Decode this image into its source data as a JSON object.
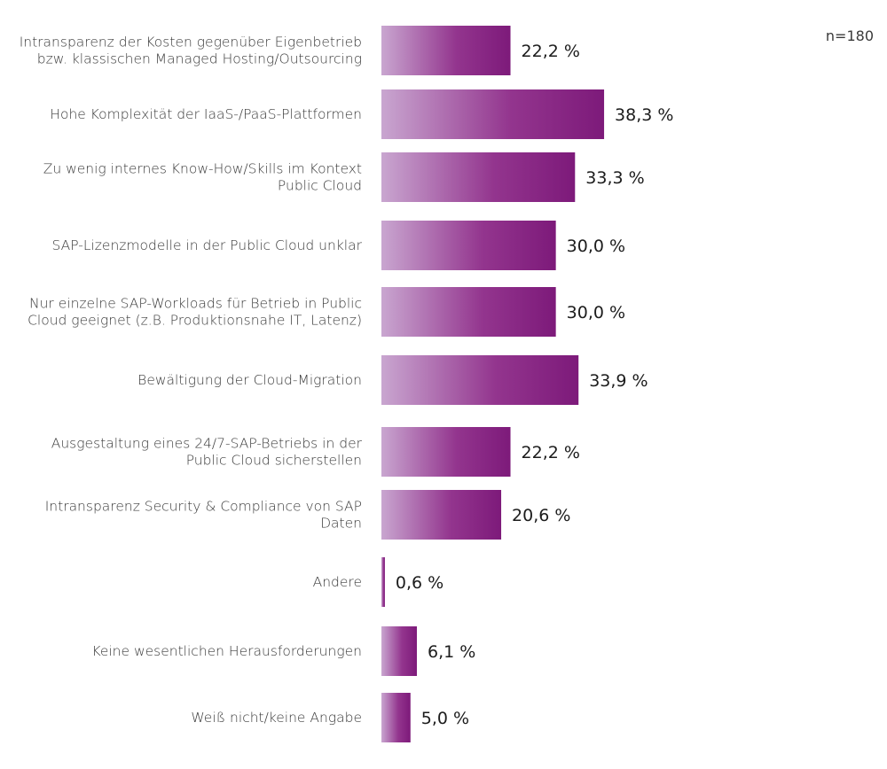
{
  "chart_data": {
    "type": "bar",
    "orientation": "horizontal",
    "sample_size": "n=180",
    "categories": [
      [
        "Intransparenz der Kosten gegenüber Eigenbetrieb",
        "bzw. klassischen Managed Hosting/Outsourcing"
      ],
      [
        "Hohe Komplexität der IaaS-/PaaS-Plattformen"
      ],
      [
        "Zu wenig internes Know-How/Skills im Kontext",
        "Public Cloud"
      ],
      [
        "SAP-Lizenzmodelle in der Public Cloud unklar"
      ],
      [
        "Nur einzelne SAP-Workloads  für Betrieb in Public",
        "Cloud geeignet (z.B. Produktionsnahe IT, Latenz)"
      ],
      [
        "Bewältigung der  Cloud-Migration"
      ],
      [
        "Ausgestaltung eines 24/7-SAP-Betriebs in der",
        "Public Cloud sicherstellen"
      ],
      [
        "Intransparenz Security & Compliance von SAP",
        "Daten"
      ],
      [
        "Andere"
      ],
      [
        "Keine wesentlichen Herausforderungen"
      ],
      [
        "Weiß nicht/keine Angabe"
      ]
    ],
    "values": [
      22.2,
      38.3,
      33.3,
      30.0,
      30.0,
      33.9,
      22.2,
      20.6,
      0.6,
      6.1,
      5.0
    ],
    "value_labels": [
      "22,2 %",
      "38,3 %",
      "33,3 %",
      "30,0 %",
      "30,0 %",
      "33,9 %",
      "22,2 %",
      "20,6 %",
      "0,6 %",
      "6,1 %",
      "5,0 %"
    ],
    "unit": "%",
    "xlim": [
      0,
      100
    ],
    "grid": false,
    "legend": "none",
    "colors": {
      "bar_light": "#c9a6d0",
      "bar_mid": "#93358e",
      "bar_dark": "#7d1a7a",
      "label_text": "#3a3a3a",
      "value_text": "#1c1c1c"
    }
  }
}
